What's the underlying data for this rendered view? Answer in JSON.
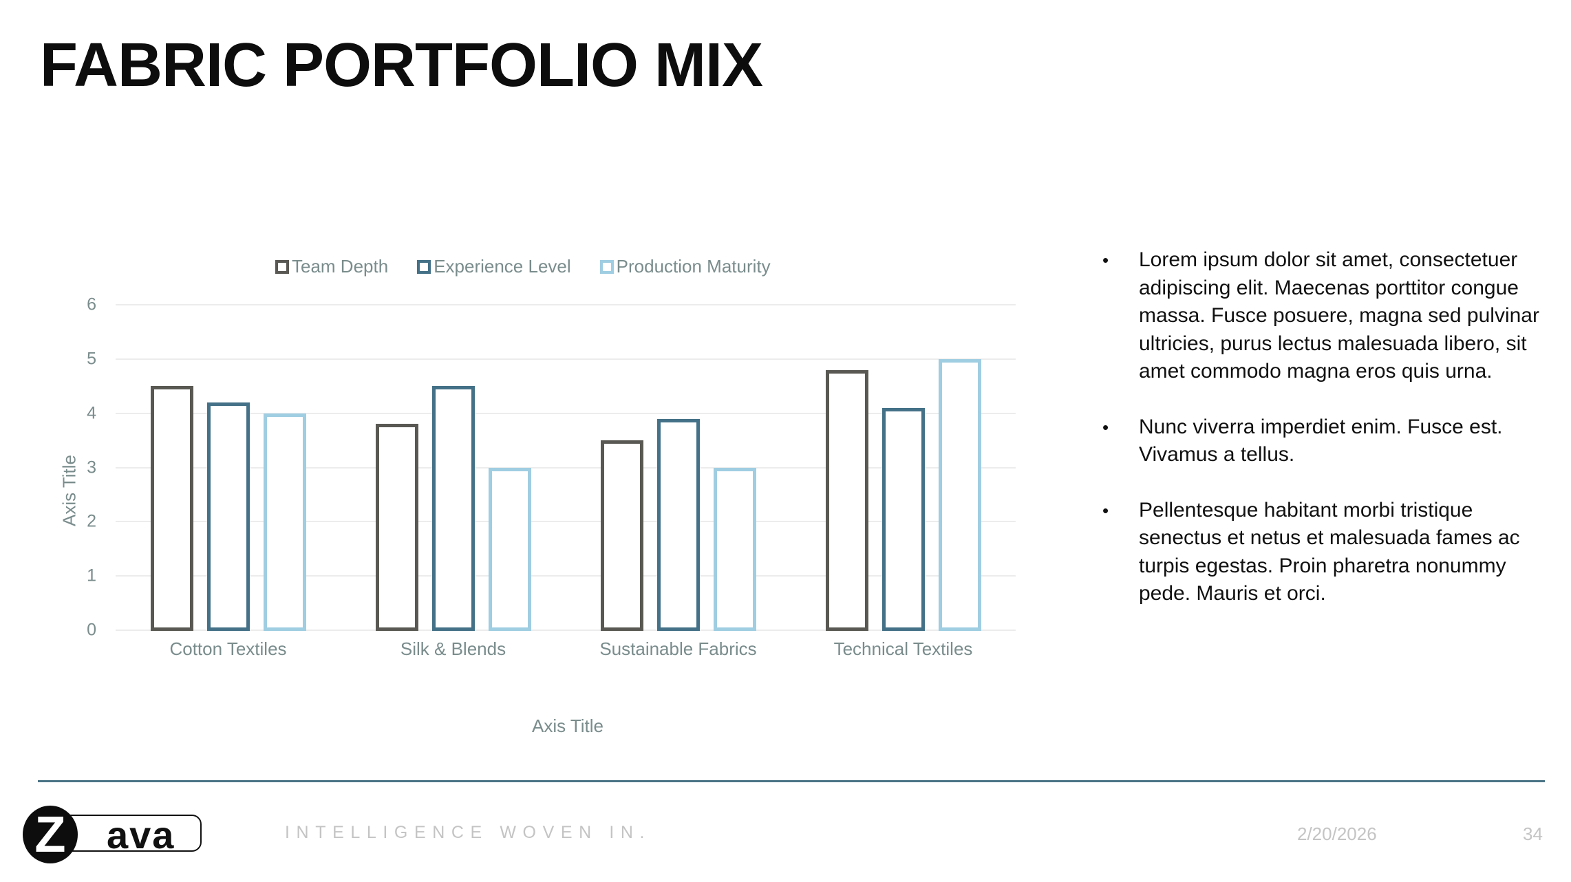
{
  "slide": {
    "title": "FABRIC PORTFOLIO MIX"
  },
  "chart_data": {
    "type": "bar",
    "title": "",
    "categories": [
      "Cotton Textiles",
      "Silk & Blends",
      "Sustainable Fabrics",
      "Technical Textiles"
    ],
    "series": [
      {
        "name": "Team Depth",
        "color": "#595852",
        "values": [
          4.5,
          3.8,
          3.5,
          4.8
        ]
      },
      {
        "name": "Experience Level",
        "color": "#447187",
        "values": [
          4.2,
          4.5,
          3.9,
          4.1
        ]
      },
      {
        "name": "Production Maturity",
        "color": "#9fcde1",
        "values": [
          4.0,
          3.0,
          3.0,
          5.0
        ]
      }
    ],
    "xlabel": "Axis Title",
    "ylabel": "Axis Title",
    "ylim": [
      0,
      6
    ],
    "yticks": [
      "0",
      "1",
      "2",
      "3",
      "4",
      "5",
      "6"
    ],
    "grid": true,
    "legend_position": "top",
    "bar_style": "outline"
  },
  "bullets": [
    "Lorem ipsum dolor sit amet, consectetuer adipiscing elit. Maecenas porttitor congue massa. Fusce posuere, magna sed pulvinar ultricies, purus lectus malesuada libero, sit amet commodo magna eros quis urna.",
    "Nunc viverra imperdiet enim. Fusce est. Vivamus a tellus.",
    "Pellentesque habitant morbi tristique senectus et netus et malesuada fames ac turpis egestas. Proin pharetra nonummy pede. Mauris et orci."
  ],
  "bullet_glyph": "•",
  "footer": {
    "logo_initial": "Z",
    "logo_rest": "ava",
    "tagline": "INTELLIGENCE WOVEN IN.",
    "date": "2/20/2026",
    "page_number": "34",
    "rule_color": "#4a7386"
  }
}
